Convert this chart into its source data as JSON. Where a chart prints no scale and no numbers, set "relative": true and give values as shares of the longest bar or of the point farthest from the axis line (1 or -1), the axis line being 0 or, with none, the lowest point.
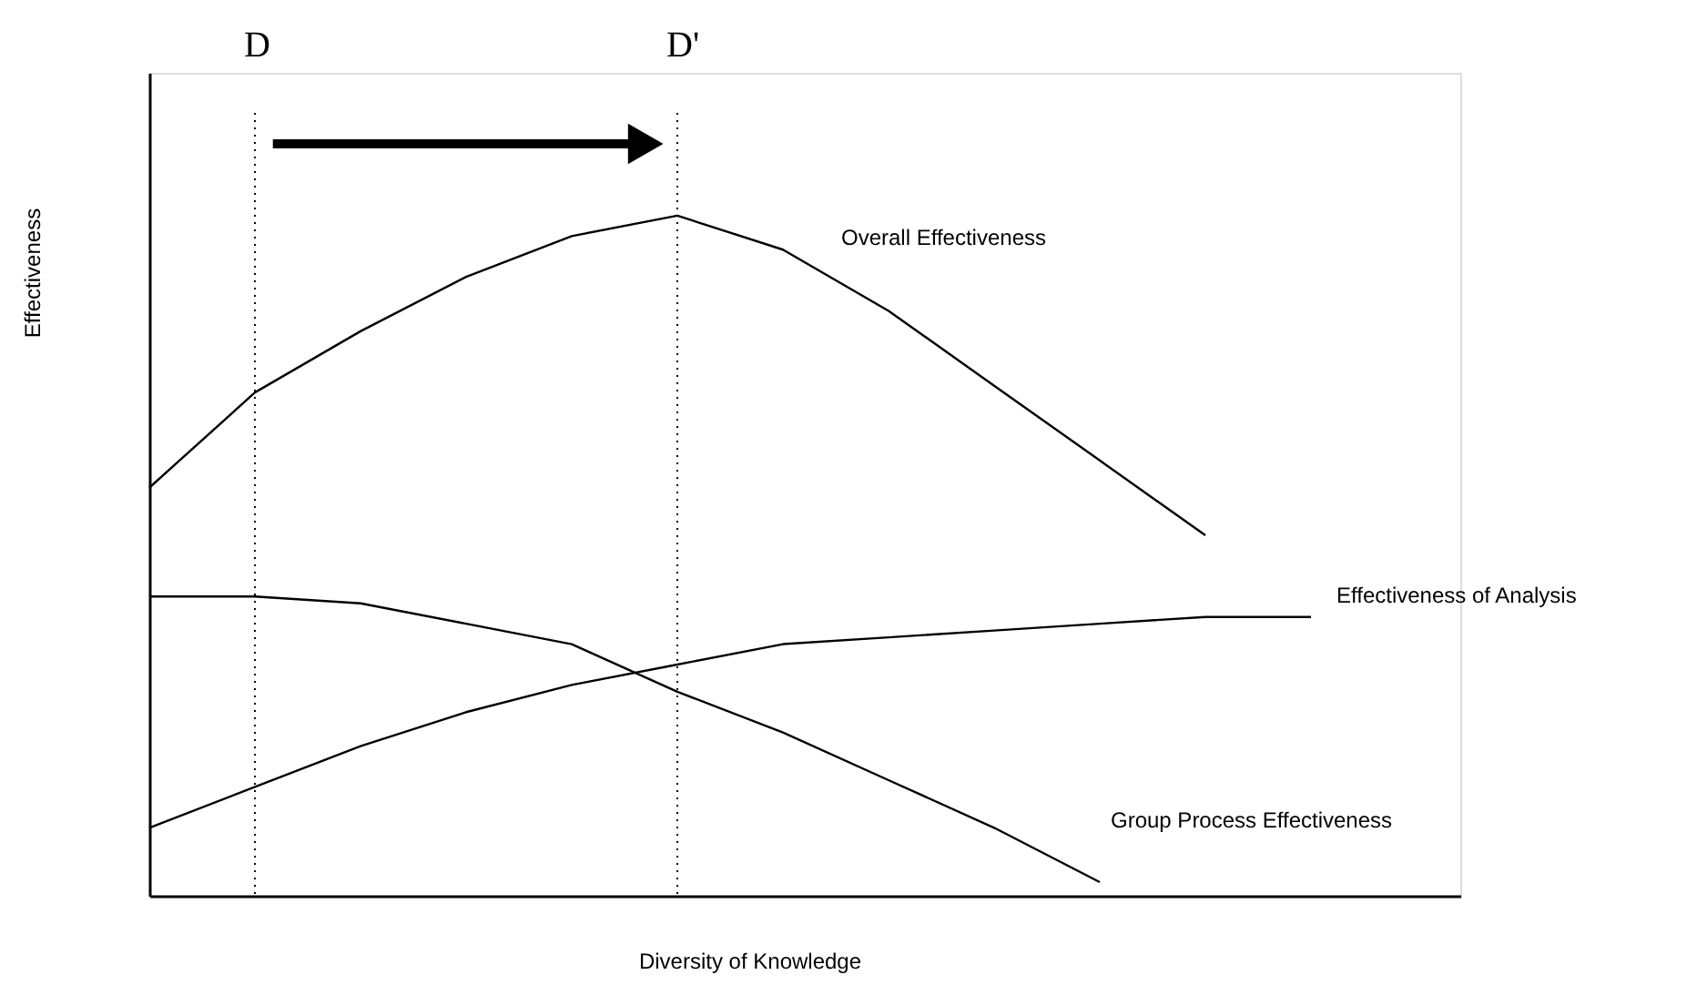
{
  "chart_data": {
    "type": "line",
    "relative": true,
    "xlabel": "Diversity of Knowledge",
    "ylabel": "Effectiveness",
    "categories": [
      null,
      null,
      null,
      null,
      null,
      null,
      null,
      null,
      null,
      null,
      null,
      null,
      null
    ],
    "grid": false,
    "marker": "none",
    "line_style": "solid",
    "series": [
      {
        "name": "Overall Effectiveness",
        "color": "#000000",
        "values": [
          0.6,
          0.74,
          0.83,
          0.91,
          0.97,
          1.0,
          0.95,
          0.86,
          0.75,
          0.64,
          0.53,
          null,
          null
        ]
      },
      {
        "name": "Effectiveness of Analysis",
        "color": "#000000",
        "values": [
          0.1,
          0.16,
          0.22,
          0.27,
          0.31,
          0.34,
          0.37,
          0.38,
          0.39,
          0.4,
          0.41,
          0.41,
          null
        ]
      },
      {
        "name": "Group Process Effectiveness",
        "color": "#000000",
        "values": [
          0.44,
          0.44,
          0.43,
          0.4,
          0.37,
          0.3,
          0.24,
          0.17,
          0.1,
          0.02,
          null,
          null,
          null
        ]
      }
    ],
    "annotations": [
      "D",
      "D'"
    ]
  }
}
